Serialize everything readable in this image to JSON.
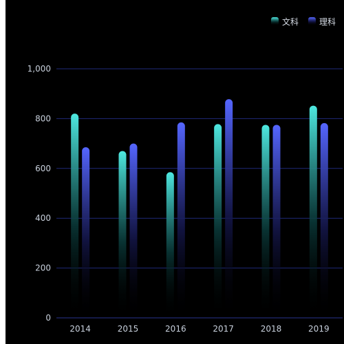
{
  "chart_data": {
    "type": "bar",
    "categories": [
      "2014",
      "2015",
      "2016",
      "2017",
      "2018",
      "2019"
    ],
    "series": [
      {
        "name": "文科",
        "values": [
          820,
          670,
          585,
          778,
          775,
          852
        ],
        "color_top": "#4ee8e0",
        "color_bottom": "#0a3a3a"
      },
      {
        "name": "理科",
        "values": [
          685,
          700,
          785,
          878,
          775,
          782
        ],
        "color_top": "#5566ff",
        "color_bottom": "#14164a"
      }
    ],
    "ylim": [
      0,
      1000
    ],
    "yticks": [
      "0",
      "200",
      "400",
      "600",
      "800",
      "1,000"
    ],
    "ytick_values": [
      0,
      200,
      400,
      600,
      800,
      1000
    ],
    "grid": true,
    "grid_color": "#1f2a7a",
    "legend_position": "top-right",
    "title": "",
    "xlabel": "",
    "ylabel": ""
  }
}
